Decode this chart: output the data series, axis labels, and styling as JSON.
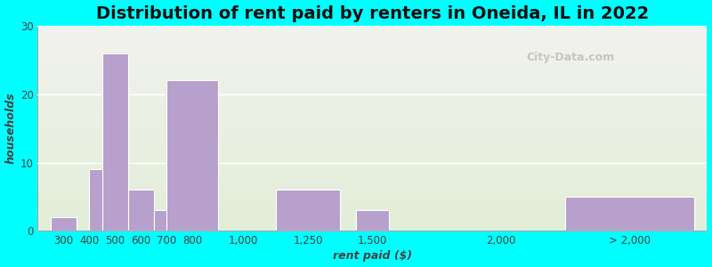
{
  "title": "Distribution of rent paid by renters in Oneida, IL in 2022",
  "xlabel": "rent paid ($)",
  "ylabel": "households",
  "bar_color": "#b8a0cc",
  "background_color": "#00ffff",
  "gradient_top": "#f2f2ee",
  "gradient_bottom": "#e2eed8",
  "ylim": [
    0,
    30
  ],
  "yticks": [
    0,
    10,
    20,
    30
  ],
  "xtick_positions": [
    300,
    400,
    500,
    600,
    700,
    800,
    1000,
    1250,
    1500,
    2000,
    2500
  ],
  "xtick_labels": [
    "300",
    "400",
    "500",
    "600",
    "700",
    "800",
    "1,000",
    "1,250",
    "1,500",
    "2,000",
    "> 2,000"
  ],
  "bar_centers": [
    300,
    450,
    500,
    600,
    700,
    800,
    1250,
    1500,
    2500
  ],
  "bar_widths": [
    100,
    100,
    100,
    100,
    100,
    200,
    250,
    125,
    500
  ],
  "bar_values": [
    2,
    9,
    26,
    6,
    3,
    22,
    6,
    3,
    5
  ],
  "xlim": [
    200,
    2800
  ],
  "title_fontsize": 14,
  "axis_label_fontsize": 9,
  "tick_fontsize": 8.5,
  "watermark": "City-Data.com"
}
